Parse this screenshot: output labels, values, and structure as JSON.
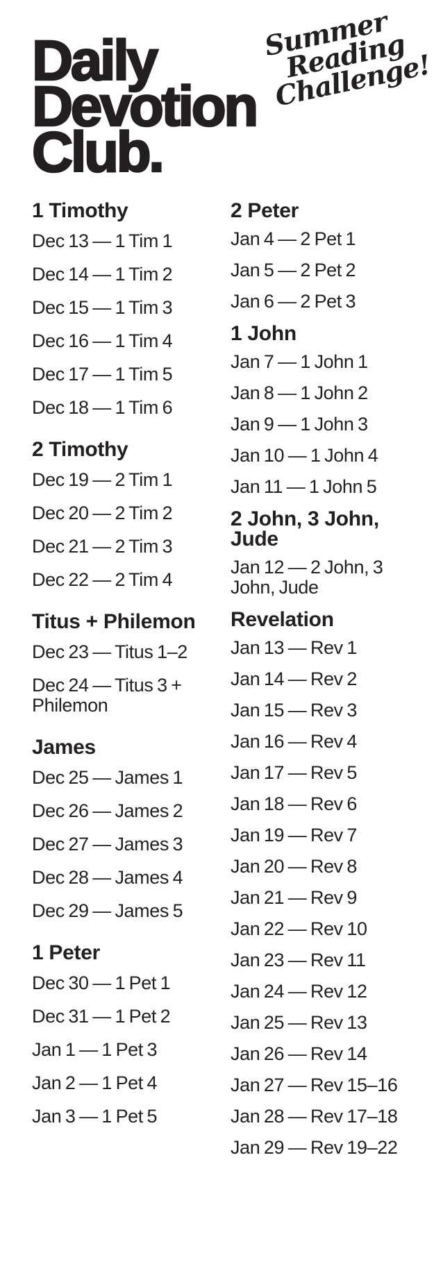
{
  "page": {
    "background": "#ffffff",
    "text_color": "#231f20"
  },
  "header": {
    "title_lines": [
      "Daily",
      "Devotion",
      "Club."
    ],
    "badge_lines": [
      "Summer",
      "Reading",
      "Challenge!"
    ]
  },
  "columns": {
    "left": {
      "sections": [
        {
          "title": "1 Timothy",
          "entries": [
            "Dec 13 — 1 Tim 1",
            "Dec 14 — 1 Tim 2",
            "Dec 15 — 1 Tim 3",
            "Dec 16 — 1 Tim 4",
            "Dec 17 — 1 Tim 5",
            "Dec 18 — 1 Tim 6"
          ]
        },
        {
          "title": "2 Timothy",
          "entries": [
            "Dec 19 — 2 Tim 1",
            "Dec 20 — 2 Tim 2",
            "Dec 21 — 2 Tim 3",
            "Dec 22 — 2 Tim 4"
          ]
        },
        {
          "title": "Titus + Philemon",
          "entries": [
            "Dec 23 — Titus 1–2",
            "Dec 24 — Titus 3 + Phile­mon"
          ]
        },
        {
          "title": "James",
          "entries": [
            "Dec 25 — James 1",
            "Dec 26 — James 2",
            "Dec 27 — James 3",
            "Dec 28 — James 4",
            "Dec 29 — James 5"
          ]
        },
        {
          "title": "1 Peter",
          "entries": [
            "Dec 30 — 1 Pet 1",
            "Dec 31 — 1 Pet 2",
            "Jan 1 — 1 Pet 3",
            "Jan 2 — 1 Pet 4",
            "Jan 3 — 1 Pet 5"
          ]
        }
      ]
    },
    "right": {
      "sections": [
        {
          "title": "2 Peter",
          "entries": [
            "Jan 4 — 2 Pet 1",
            "Jan 5 — 2 Pet 2",
            "Jan 6 — 2 Pet 3"
          ]
        },
        {
          "title": "1 John",
          "entries": [
            "Jan 7 — 1 John 1",
            "Jan 8 — 1 John 2",
            "Jan 9 — 1 John 3",
            "Jan 10 — 1 John 4",
            "Jan 11 — 1 John 5"
          ]
        },
        {
          "title": "2 John, 3 John, Jude",
          "entries": [
            "Jan 12 — 2 John, 3 John, Jude"
          ]
        },
        {
          "title": "Revelation",
          "entries": [
            "Jan 13 — Rev 1",
            "Jan 14 — Rev 2",
            "Jan 15 — Rev 3",
            "Jan 16 — Rev 4",
            "Jan 17 — Rev 5",
            "Jan 18 — Rev 6",
            "Jan 19 — Rev 7",
            "Jan 20 — Rev 8",
            "Jan 21 — Rev 9",
            "Jan 22 — Rev 10",
            "Jan 23 — Rev 11",
            "Jan 24 — Rev 12",
            "Jan 25 — Rev 13",
            "Jan 26 — Rev 14",
            "Jan 27 — Rev 15–16",
            "Jan 28 — Rev 17–18",
            "Jan 29 — Rev 19–22"
          ]
        }
      ]
    }
  }
}
